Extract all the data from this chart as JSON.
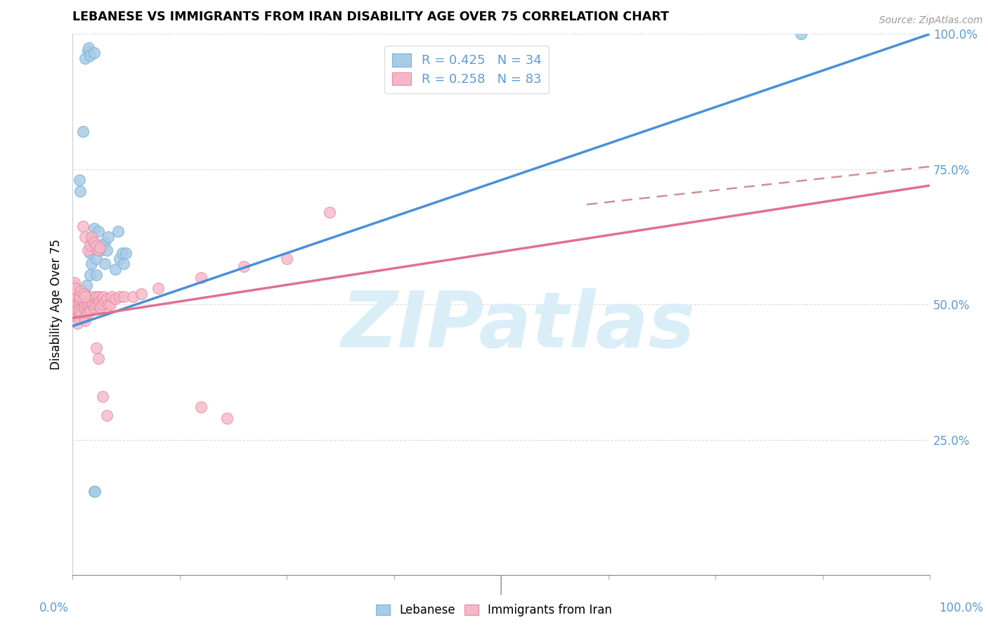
{
  "title": "LEBANESE VS IMMIGRANTS FROM IRAN DISABILITY AGE OVER 75 CORRELATION CHART",
  "source": "Source: ZipAtlas.com",
  "ylabel": "Disability Age Over 75",
  "xlim": [
    0,
    1
  ],
  "ylim": [
    0,
    1
  ],
  "ytick_labels": [
    "",
    "25.0%",
    "50.0%",
    "75.0%",
    "100.0%"
  ],
  "ytick_values": [
    0,
    0.25,
    0.5,
    0.75,
    1.0
  ],
  "xtick_values": [
    0,
    0.125,
    0.25,
    0.375,
    0.5,
    0.625,
    0.75,
    0.875,
    1.0
  ],
  "blue_scatter_color": "#a8cce8",
  "blue_scatter_edge": "#7ab3d9",
  "pink_scatter_color": "#f5b8c8",
  "pink_scatter_edge": "#e88aa0",
  "line_blue_color": "#4a90d9",
  "line_pink_color": "#e07090",
  "line_dash_color": "#d09090",
  "watermark_color": "#daeef8",
  "tick_label_color": "#5b9bd9",
  "grid_color": "#dddddd",
  "lebanese_points": [
    [
      0.005,
      0.485
    ],
    [
      0.006,
      0.495
    ],
    [
      0.007,
      0.5
    ],
    [
      0.008,
      0.49
    ],
    [
      0.01,
      0.5
    ],
    [
      0.011,
      0.515
    ],
    [
      0.012,
      0.505
    ],
    [
      0.013,
      0.5
    ],
    [
      0.015,
      0.485
    ],
    [
      0.015,
      0.52
    ],
    [
      0.016,
      0.535
    ],
    [
      0.018,
      0.495
    ],
    [
      0.02,
      0.555
    ],
    [
      0.02,
      0.595
    ],
    [
      0.022,
      0.575
    ],
    [
      0.022,
      0.62
    ],
    [
      0.025,
      0.64
    ],
    [
      0.025,
      0.61
    ],
    [
      0.028,
      0.585
    ],
    [
      0.028,
      0.555
    ],
    [
      0.03,
      0.635
    ],
    [
      0.032,
      0.6
    ],
    [
      0.035,
      0.61
    ],
    [
      0.038,
      0.615
    ],
    [
      0.038,
      0.575
    ],
    [
      0.04,
      0.6
    ],
    [
      0.042,
      0.625
    ],
    [
      0.05,
      0.565
    ],
    [
      0.053,
      0.635
    ],
    [
      0.055,
      0.585
    ],
    [
      0.058,
      0.595
    ],
    [
      0.06,
      0.575
    ],
    [
      0.062,
      0.595
    ],
    [
      0.85,
      1.0
    ],
    [
      0.015,
      0.955
    ],
    [
      0.018,
      0.97
    ],
    [
      0.019,
      0.975
    ],
    [
      0.02,
      0.96
    ],
    [
      0.025,
      0.965
    ],
    [
      0.012,
      0.82
    ],
    [
      0.008,
      0.73
    ],
    [
      0.009,
      0.71
    ],
    [
      0.025,
      0.155
    ],
    [
      0.026,
      0.155
    ]
  ],
  "iran_points": [
    [
      0.002,
      0.5
    ],
    [
      0.002,
      0.485
    ],
    [
      0.003,
      0.515
    ],
    [
      0.003,
      0.495
    ],
    [
      0.004,
      0.505
    ],
    [
      0.004,
      0.49
    ],
    [
      0.005,
      0.5
    ],
    [
      0.005,
      0.525
    ],
    [
      0.006,
      0.465
    ],
    [
      0.006,
      0.49
    ],
    [
      0.007,
      0.5
    ],
    [
      0.007,
      0.475
    ],
    [
      0.008,
      0.515
    ],
    [
      0.008,
      0.49
    ],
    [
      0.009,
      0.505
    ],
    [
      0.01,
      0.485
    ],
    [
      0.01,
      0.515
    ],
    [
      0.011,
      0.5
    ],
    [
      0.012,
      0.495
    ],
    [
      0.013,
      0.505
    ],
    [
      0.014,
      0.475
    ],
    [
      0.014,
      0.495
    ],
    [
      0.015,
      0.47
    ],
    [
      0.015,
      0.5
    ],
    [
      0.016,
      0.515
    ],
    [
      0.017,
      0.5
    ],
    [
      0.018,
      0.505
    ],
    [
      0.018,
      0.485
    ],
    [
      0.019,
      0.5
    ],
    [
      0.02,
      0.49
    ],
    [
      0.021,
      0.51
    ],
    [
      0.022,
      0.5
    ],
    [
      0.023,
      0.515
    ],
    [
      0.024,
      0.5
    ],
    [
      0.025,
      0.495
    ],
    [
      0.026,
      0.51
    ],
    [
      0.027,
      0.5
    ],
    [
      0.028,
      0.515
    ],
    [
      0.029,
      0.505
    ],
    [
      0.03,
      0.5
    ],
    [
      0.031,
      0.515
    ],
    [
      0.032,
      0.505
    ],
    [
      0.033,
      0.495
    ],
    [
      0.034,
      0.51
    ],
    [
      0.035,
      0.5
    ],
    [
      0.036,
      0.515
    ],
    [
      0.038,
      0.505
    ],
    [
      0.04,
      0.51
    ],
    [
      0.042,
      0.5
    ],
    [
      0.044,
      0.5
    ],
    [
      0.046,
      0.515
    ],
    [
      0.05,
      0.51
    ],
    [
      0.055,
      0.515
    ],
    [
      0.06,
      0.515
    ],
    [
      0.07,
      0.515
    ],
    [
      0.08,
      0.52
    ],
    [
      0.1,
      0.53
    ],
    [
      0.15,
      0.55
    ],
    [
      0.2,
      0.57
    ],
    [
      0.25,
      0.585
    ],
    [
      0.001,
      0.535
    ],
    [
      0.001,
      0.52
    ],
    [
      0.012,
      0.645
    ],
    [
      0.015,
      0.625
    ],
    [
      0.018,
      0.6
    ],
    [
      0.02,
      0.61
    ],
    [
      0.022,
      0.625
    ],
    [
      0.025,
      0.615
    ],
    [
      0.028,
      0.61
    ],
    [
      0.03,
      0.6
    ],
    [
      0.032,
      0.605
    ],
    [
      0.028,
      0.42
    ],
    [
      0.03,
      0.4
    ],
    [
      0.035,
      0.33
    ],
    [
      0.04,
      0.295
    ],
    [
      0.15,
      0.31
    ],
    [
      0.18,
      0.29
    ],
    [
      0.3,
      0.67
    ],
    [
      0.002,
      0.54
    ],
    [
      0.003,
      0.53
    ],
    [
      0.008,
      0.515
    ],
    [
      0.01,
      0.525
    ],
    [
      0.013,
      0.52
    ],
    [
      0.015,
      0.515
    ]
  ],
  "blue_line": {
    "x0": 0.0,
    "x1": 1.0,
    "y0": 0.46,
    "y1": 1.0
  },
  "pink_line": {
    "x0": 0.0,
    "x1": 1.0,
    "y0": 0.475,
    "y1": 0.72
  },
  "dash_line": {
    "x0": 0.6,
    "x1": 1.0,
    "y0": 0.685,
    "y1": 0.755
  }
}
